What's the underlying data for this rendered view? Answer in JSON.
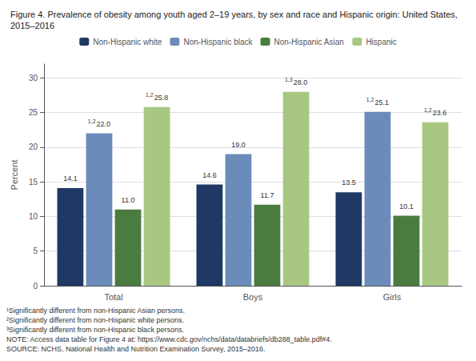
{
  "chart_data": {
    "type": "bar",
    "title": "Figure 4. Prevalence of obesity among youth aged 2–19 years, by sex and race and Hispanic origin: United States, 2015–2016",
    "categories": [
      "Total",
      "Boys",
      "Girls"
    ],
    "series": [
      {
        "name": "Non-Hispanic white",
        "color": "#1f3864",
        "values": [
          14.1,
          14.6,
          13.5
        ],
        "value_labels": [
          "14.1",
          "14.6",
          "13.5"
        ],
        "superscripts": [
          null,
          null,
          null
        ]
      },
      {
        "name": "Non-Hispanic black",
        "color": "#6b8cba",
        "values": [
          22.0,
          19.0,
          25.1
        ],
        "value_labels": [
          "22.0",
          "19.0",
          "25.1"
        ],
        "superscripts": [
          "1,2",
          null,
          "1,2"
        ]
      },
      {
        "name": "Non-Hispanic Asian",
        "color": "#4a7c3f",
        "values": [
          11.0,
          11.7,
          10.1
        ],
        "value_labels": [
          "11.0",
          "11.7",
          "10.1"
        ],
        "superscripts": [
          null,
          null,
          null
        ]
      },
      {
        "name": "Hispanic",
        "color": "#a8c882",
        "values": [
          25.8,
          28.0,
          23.6
        ],
        "value_labels": [
          "25.8",
          "28.0",
          "23.6"
        ],
        "superscripts": [
          "1,2",
          "1,3",
          "1,2"
        ]
      }
    ],
    "ylabel": "Percent",
    "ylim": [
      0,
      32
    ],
    "yticks": [
      0,
      5,
      10,
      15,
      20,
      25,
      30
    ],
    "grid": true,
    "legend": "top",
    "data_labels": true,
    "footnotes": [
      "¹Significantly different from non-Hispanic Asian persons.",
      "²Significantly different from non-Hispanic white persons.",
      "³Significantly different from non-Hispanic black persons.",
      "NOTE: Access data table for Figure 4 at: https://www.cdc.gov/nchs/data/databriefs/db288_table.pdf#4.",
      "SOURCE: NCHS, National Health and Nutrition Examination Survey, 2015–2016."
    ]
  }
}
